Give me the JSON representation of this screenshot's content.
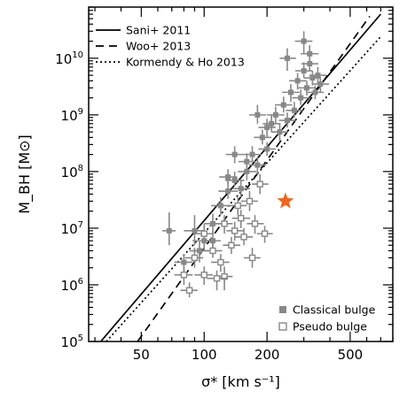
{
  "chart_data": {
    "type": "scatter",
    "xlabel": "σ* [km s⁻¹]",
    "ylabel": "M_BH [M⊙]",
    "x_scale": "log",
    "y_scale": "log",
    "xlim": [
      28,
      800
    ],
    "ylim": [
      100000,
      80000000000
    ],
    "x_ticks": [
      {
        "value": 50,
        "label": "50"
      },
      {
        "value": 100,
        "label": "100"
      },
      {
        "value": 200,
        "label": "200"
      },
      {
        "value": 500,
        "label": "500"
      }
    ],
    "y_ticks": [
      {
        "value": 100000,
        "base": "10",
        "exp": "5"
      },
      {
        "value": 1000000,
        "base": "10",
        "exp": "6"
      },
      {
        "value": 10000000,
        "base": "10",
        "exp": "7"
      },
      {
        "value": 100000000,
        "base": "10",
        "exp": "8"
      },
      {
        "value": 1000000000,
        "base": "10",
        "exp": "9"
      },
      {
        "value": 10000000000,
        "base": "10",
        "exp": "10"
      }
    ],
    "legend_lines_position": "top-left",
    "legend_markers_position": "bottom-right",
    "lines": [
      {
        "name": "Sani+ 2011",
        "style": "solid",
        "x": [
          32,
          700
        ],
        "y": [
          100000,
          60000000000
        ]
      },
      {
        "name": "Woo+ 2013",
        "style": "dashed",
        "x": [
          48,
          620
        ],
        "y": [
          100000,
          55000000000
        ]
      },
      {
        "name": "Kormendy & Ho 2013",
        "style": "dotted",
        "x": [
          34,
          700
        ],
        "y": [
          100000,
          24000000000
        ]
      }
    ],
    "series": [
      {
        "name": "Classical bulge",
        "marker": "filled-square",
        "color": "#888888",
        "points": [
          {
            "x": 90,
            "y": 9000000,
            "xerr": [
              10,
              10
            ],
            "yerr": [
              4000000,
              8000000
            ]
          },
          {
            "x": 100,
            "y": 6000000,
            "xerr": [
              12,
              12
            ],
            "yerr": [
              2000000,
              3000000
            ]
          },
          {
            "x": 110,
            "y": 12000000,
            "xerr": [
              10,
              12
            ],
            "yerr": [
              4000000,
              6000000
            ]
          },
          {
            "x": 120,
            "y": 25000000,
            "xerr": [
              12,
              14
            ],
            "yerr": [
              8000000,
              10000000
            ]
          },
          {
            "x": 130,
            "y": 45000000,
            "xerr": [
              13,
              15
            ],
            "yerr": [
              12000000,
              20000000
            ]
          },
          {
            "x": 140,
            "y": 70000000,
            "xerr": [
              14,
              16
            ],
            "yerr": [
              15000000,
              30000000
            ]
          },
          {
            "x": 150,
            "y": 50000000,
            "xerr": [
              14,
              16
            ],
            "yerr": [
              15000000,
              20000000
            ]
          },
          {
            "x": 160,
            "y": 100000000,
            "xerr": [
              15,
              18
            ],
            "yerr": [
              30000000,
              40000000
            ]
          },
          {
            "x": 170,
            "y": 200000000,
            "xerr": [
              15,
              18
            ],
            "yerr": [
              50000000,
              80000000
            ]
          },
          {
            "x": 180,
            "y": 130000000,
            "xerr": [
              16,
              18
            ],
            "yerr": [
              40000000,
              50000000
            ]
          },
          {
            "x": 190,
            "y": 400000000,
            "xerr": [
              17,
              20
            ],
            "yerr": [
              100000000,
              150000000
            ]
          },
          {
            "x": 200,
            "y": 250000000,
            "xerr": [
              18,
              20
            ],
            "yerr": [
              60000000,
              80000000
            ]
          },
          {
            "x": 210,
            "y": 700000000,
            "xerr": [
              19,
              22
            ],
            "yerr": [
              200000000,
              300000000
            ]
          },
          {
            "x": 220,
            "y": 1000000000,
            "xerr": [
              20,
              22
            ],
            "yerr": [
              300000000,
              400000000
            ]
          },
          {
            "x": 230,
            "y": 500000000,
            "xerr": [
              20,
              22
            ],
            "yerr": [
              150000000,
              200000000
            ]
          },
          {
            "x": 240,
            "y": 1500000000,
            "xerr": [
              22,
              24
            ],
            "yerr": [
              400000000,
              600000000
            ]
          },
          {
            "x": 250,
            "y": 800000000,
            "xerr": [
              22,
              24
            ],
            "yerr": [
              200000000,
              300000000
            ]
          },
          {
            "x": 260,
            "y": 2500000000,
            "xerr": [
              24,
              26
            ],
            "yerr": [
              800000000,
              1000000000
            ]
          },
          {
            "x": 270,
            "y": 1200000000,
            "xerr": [
              24,
              26
            ],
            "yerr": [
              300000000,
              500000000
            ]
          },
          {
            "x": 280,
            "y": 4000000000,
            "xerr": [
              25,
              28
            ],
            "yerr": [
              1200000000,
              1500000000
            ]
          },
          {
            "x": 290,
            "y": 2000000000,
            "xerr": [
              26,
              28
            ],
            "yerr": [
              500000000,
              800000000
            ]
          },
          {
            "x": 300,
            "y": 6000000000,
            "xerr": [
              27,
              30
            ],
            "yerr": [
              1500000000,
              2500000000
            ]
          },
          {
            "x": 310,
            "y": 3000000000,
            "xerr": [
              28,
              30
            ],
            "yerr": [
              800000000,
              1000000000
            ]
          },
          {
            "x": 320,
            "y": 8000000000,
            "xerr": [
              28,
              32
            ],
            "yerr": [
              2000000000,
              3000000000
            ]
          },
          {
            "x": 330,
            "y": 4500000000,
            "xerr": [
              30,
              32
            ],
            "yerr": [
              1200000000,
              1500000000
            ]
          },
          {
            "x": 340,
            "y": 2500000000,
            "xerr": [
              30,
              34
            ],
            "yerr": [
              600000000,
              800000000
            ]
          },
          {
            "x": 350,
            "y": 5000000000,
            "xerr": [
              32,
              34
            ],
            "yerr": [
              1500000000,
              2000000000
            ]
          },
          {
            "x": 360,
            "y": 3500000000,
            "xerr": [
              32,
              36
            ],
            "yerr": [
              1000000000,
              1200000000
            ]
          },
          {
            "x": 300,
            "y": 20000000000,
            "xerr": [
              28,
              30
            ],
            "yerr": [
              8000000000,
              10000000000
            ]
          },
          {
            "x": 320,
            "y": 12000000000,
            "xerr": [
              30,
              32
            ],
            "yerr": [
              4000000000,
              5000000000
            ]
          },
          {
            "x": 250,
            "y": 10000000000,
            "xerr": [
              20,
              25
            ],
            "yerr": [
              4000000000,
              5000000000
            ]
          },
          {
            "x": 180,
            "y": 1000000000,
            "xerr": [
              16,
              18
            ],
            "yerr": [
              300000000,
              500000000
            ]
          },
          {
            "x": 200,
            "y": 600000000,
            "xerr": [
              18,
              20
            ],
            "yerr": [
              200000000,
              250000000
            ]
          },
          {
            "x": 160,
            "y": 150000000,
            "xerr": [
              14,
              16
            ],
            "yerr": [
              50000000,
              60000000
            ]
          },
          {
            "x": 140,
            "y": 200000000,
            "xerr": [
              13,
              15
            ],
            "yerr": [
              60000000,
              80000000
            ]
          },
          {
            "x": 130,
            "y": 80000000,
            "xerr": [
              12,
              14
            ],
            "yerr": [
              20000000,
              30000000
            ]
          },
          {
            "x": 110,
            "y": 6000000,
            "xerr": [
              10,
              10
            ],
            "yerr": [
              2000000,
              3000000
            ]
          },
          {
            "x": 95,
            "y": 4000000,
            "xerr": [
              10,
              10
            ],
            "yerr": [
              1500000,
              2000000
            ]
          },
          {
            "x": 80,
            "y": 2500000,
            "xerr": [
              8,
              8
            ],
            "yerr": [
              1000000,
              1000000
            ]
          },
          {
            "x": 68,
            "y": 9000000,
            "xerr": [
              5,
              5
            ],
            "yerr": [
              4000000,
              10000000
            ]
          }
        ]
      },
      {
        "name": "Pseudo bulge",
        "marker": "open-square",
        "color": "#888888",
        "points": [
          {
            "x": 80,
            "y": 1500000,
            "xerr": [
              8,
              8
            ],
            "yerr": [
              500000,
              600000
            ]
          },
          {
            "x": 85,
            "y": 800000,
            "xerr": [
              8,
              8
            ],
            "yerr": [
              200000,
              300000
            ]
          },
          {
            "x": 100,
            "y": 1500000,
            "xerr": [
              10,
              10
            ],
            "yerr": [
              500000,
              600000
            ]
          },
          {
            "x": 110,
            "y": 4000000,
            "xerr": [
              10,
              12
            ],
            "yerr": [
              1000000,
              1500000
            ]
          },
          {
            "x": 120,
            "y": 2500000,
            "xerr": [
              12,
              12
            ],
            "yerr": [
              800000,
              1000000
            ]
          },
          {
            "x": 125,
            "y": 1400000,
            "xerr": [
              12,
              12
            ],
            "yerr": [
              600000,
              700000
            ]
          },
          {
            "x": 135,
            "y": 5000000,
            "xerr": [
              12,
              14
            ],
            "yerr": [
              1500000,
              2000000
            ]
          },
          {
            "x": 140,
            "y": 9000000,
            "xerr": [
              12,
              14
            ],
            "yerr": [
              3000000,
              4000000
            ]
          },
          {
            "x": 150,
            "y": 15000000,
            "xerr": [
              14,
              16
            ],
            "yerr": [
              5000000,
              6000000
            ]
          },
          {
            "x": 155,
            "y": 7000000,
            "xerr": [
              14,
              16
            ],
            "yerr": [
              2000000,
              3000000
            ]
          },
          {
            "x": 165,
            "y": 30000000,
            "xerr": [
              15,
              16
            ],
            "yerr": [
              10000000,
              15000000
            ]
          },
          {
            "x": 175,
            "y": 12000000,
            "xerr": [
              15,
              18
            ],
            "yerr": [
              4000000,
              5000000
            ]
          },
          {
            "x": 185,
            "y": 60000000,
            "xerr": [
              16,
              18
            ],
            "yerr": [
              20000000,
              30000000
            ]
          },
          {
            "x": 100,
            "y": 8000000,
            "xerr": [
              10,
              10
            ],
            "yerr": [
              3000000,
              4000000
            ]
          },
          {
            "x": 90,
            "y": 3000000,
            "xerr": [
              9,
              9
            ],
            "yerr": [
              1000000,
              1500000
            ]
          },
          {
            "x": 145,
            "y": 25000000,
            "xerr": [
              14,
              15
            ],
            "yerr": [
              8000000,
              10000000
            ]
          },
          {
            "x": 125,
            "y": 12000000,
            "xerr": [
              12,
              12
            ],
            "yerr": [
              4000000,
              5000000
            ]
          },
          {
            "x": 195,
            "y": 8000000,
            "xerr": [
              16,
              18
            ],
            "yerr": [
              2500000,
              3000000
            ]
          },
          {
            "x": 170,
            "y": 3000000,
            "xerr": [
              15,
              16
            ],
            "yerr": [
              1000000,
              1500000
            ]
          },
          {
            "x": 115,
            "y": 1300000,
            "xerr": [
              12,
              15
            ],
            "yerr": [
              500000,
              500000
            ]
          }
        ]
      },
      {
        "name": "",
        "marker": "star",
        "color": "#f0641e",
        "points": [
          {
            "x": 245,
            "y": 30000000
          }
        ]
      }
    ]
  }
}
